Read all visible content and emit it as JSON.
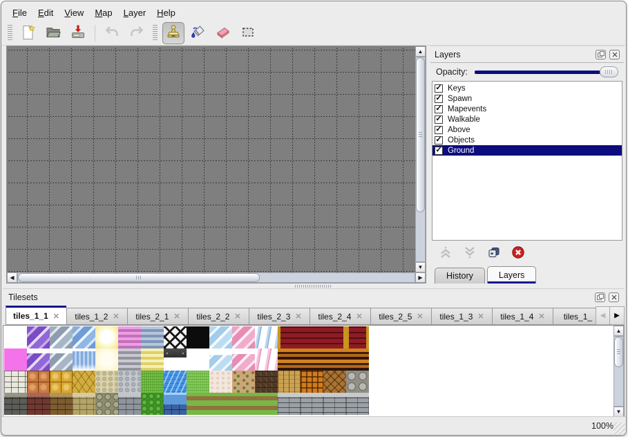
{
  "menu": {
    "items": [
      "File",
      "Edit",
      "View",
      "Map",
      "Layer",
      "Help"
    ]
  },
  "toolbar": {
    "buttons": [
      "new-file",
      "open-file",
      "save-file",
      "undo",
      "redo",
      "stamp-tool",
      "fill-tool",
      "eraser-tool",
      "rect-select-tool"
    ],
    "selected": "stamp-tool"
  },
  "layers_dock": {
    "title": "Layers",
    "opacity_label": "Opacity:",
    "float_icon": "float-window-icon",
    "close_icon": "close-icon",
    "layers": [
      {
        "label": "Keys",
        "checked": true,
        "selected": false
      },
      {
        "label": "Spawn",
        "checked": true,
        "selected": false
      },
      {
        "label": "Mapevents",
        "checked": true,
        "selected": false
      },
      {
        "label": "Walkable",
        "checked": true,
        "selected": false
      },
      {
        "label": "Above",
        "checked": true,
        "selected": false
      },
      {
        "label": "Objects",
        "checked": true,
        "selected": false
      },
      {
        "label": "Ground",
        "checked": true,
        "selected": true
      }
    ],
    "buttons": [
      "move-layer-up",
      "move-layer-down",
      "duplicate-layer",
      "delete-layer"
    ],
    "tabs": [
      {
        "label": "History",
        "active": false
      },
      {
        "label": "Layers",
        "active": true
      }
    ]
  },
  "tilesets_dock": {
    "title": "Tilesets",
    "close_glyph": "✕",
    "tabs": [
      {
        "label": "tiles_1_1",
        "active": true
      },
      {
        "label": "tiles_1_2",
        "active": false
      },
      {
        "label": "tiles_2_1",
        "active": false
      },
      {
        "label": "tiles_2_2",
        "active": false
      },
      {
        "label": "tiles_2_3",
        "active": false
      },
      {
        "label": "tiles_2_4",
        "active": false
      },
      {
        "label": "tiles_2_5",
        "active": false
      },
      {
        "label": "tiles_1_3",
        "active": false
      },
      {
        "label": "tiles_1_4",
        "active": false
      },
      {
        "label": "tiles_1_",
        "active": false
      }
    ],
    "grid": [
      [
        "white",
        "glass-purple",
        "glass-gray",
        "glass-blue",
        "glow-yellow",
        "stripe-pink",
        "stripe-bluegray",
        "lattice",
        "black",
        "glass-ltblue",
        "glass-pink",
        "curtain-blue",
        "carpet-red-l",
        "carpet-red",
        "carpet-red-r",
        "carpet-red-lr"
      ],
      [
        "magenta",
        "glass-purple-b",
        "glass-gray-b",
        "water-blue-b",
        "glow-pale",
        "stripe-gray",
        "stripe-yellow",
        "sign",
        "white",
        "glass-ltblue-b",
        "glass-pink-b",
        "curtain-pink",
        "carpet-orange",
        "carpet-orange",
        "carpet-orange",
        "carpet-orange"
      ],
      [
        "stone-white",
        "tile-orange",
        "tile-gold",
        "stone-gold",
        "pebble-beige",
        "pebble-gray",
        "grass",
        "water",
        "grass2",
        "cream",
        "dirt",
        "shingle",
        "plank-v",
        "wicker",
        "herringbone",
        "stones"
      ],
      [
        "brick-dark",
        "brick-red",
        "brick-brown",
        "stone-tan",
        "pebblewall",
        "brick-gray",
        "hedge",
        "waterwall",
        "grasspath",
        "grasspath",
        "grasspath",
        "grasspath",
        "plankwall",
        "plankwall",
        "plankwall",
        "plankwall"
      ]
    ]
  },
  "statusbar": {
    "zoom_level": "100%"
  },
  "colors": {
    "accent_navy": "#0c0c7e",
    "canvas_gray": "#7f7f7f",
    "selection_bg": "#0c0c7e",
    "panel_bg": "#ececec"
  }
}
